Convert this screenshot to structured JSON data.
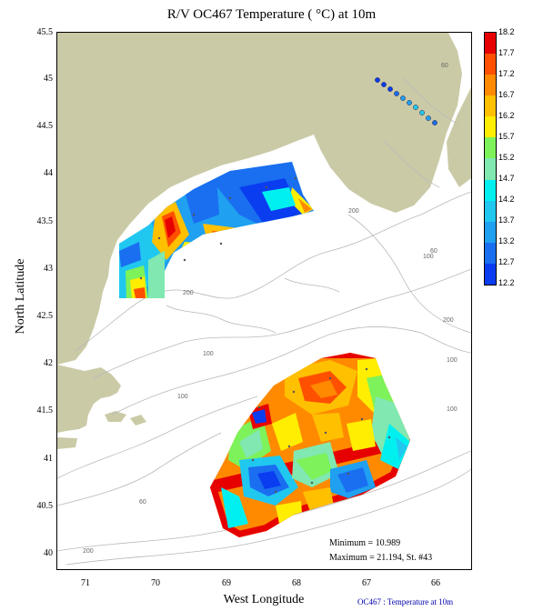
{
  "title": "R/V OC467 Temperature ( °C) at 10m",
  "axes": {
    "ylabel": "North Latitude",
    "xlabel": "West Longitude",
    "yticks": [
      "45.5",
      "45",
      "44.5",
      "44",
      "43.5",
      "43",
      "42.5",
      "42",
      "41.5",
      "41",
      "40.5",
      "40"
    ],
    "xticks": [
      "71",
      "70",
      "69",
      "68",
      "67",
      "66"
    ]
  },
  "colorbar": {
    "labels": [
      "18.2",
      "17.7",
      "17.2",
      "16.7",
      "16.2",
      "15.7",
      "15.2",
      "14.7",
      "14.2",
      "13.7",
      "13.2",
      "12.7",
      "12.2"
    ],
    "colors": [
      "#e60000",
      "#ff5000",
      "#ff8a00",
      "#ffc000",
      "#ffee00",
      "#7df25a",
      "#80e8b0",
      "#00f0f0",
      "#20c8f0",
      "#1fa0f0",
      "#1a6ef0",
      "#0a3cf0"
    ]
  },
  "stats": {
    "minimum": "Minimum = 10.989",
    "maximum": "Maximum = 21.194, St. #43"
  },
  "credit": "OC467 : Temperature at 10m",
  "bathymetry_labels": [
    "60",
    "100",
    "200",
    "200",
    "200",
    "60",
    "100",
    "100",
    "100",
    "100",
    "60",
    "100",
    "200"
  ],
  "land_color": "#cbcaa7",
  "contour_color": "#b8b8b8"
}
